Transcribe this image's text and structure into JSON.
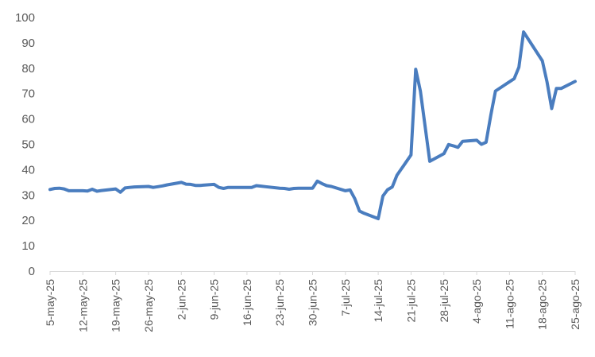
{
  "chart_data": {
    "type": "line",
    "title": "",
    "xlabel": "",
    "ylabel": "",
    "ylim": [
      0,
      100
    ],
    "yticks": [
      0,
      10,
      20,
      30,
      40,
      50,
      60,
      70,
      80,
      90,
      100
    ],
    "grid": false,
    "legend": "none",
    "line_color": "#4a7dbf",
    "xlim": [
      "2025-05-05",
      "2025-08-25"
    ],
    "xtick_dates": [
      "2025-05-05",
      "2025-05-12",
      "2025-05-19",
      "2025-05-26",
      "2025-06-02",
      "2025-06-09",
      "2025-06-16",
      "2025-06-23",
      "2025-06-30",
      "2025-07-07",
      "2025-07-14",
      "2025-07-21",
      "2025-07-28",
      "2025-08-04",
      "2025-08-11",
      "2025-08-18",
      "2025-08-25"
    ],
    "xtick_labels": [
      "5-may-25",
      "12-may-25",
      "19-may-25",
      "26-may-25",
      "2-jun-25",
      "9-jun-25",
      "16-jun-25",
      "23-jun-25",
      "30-jun-25",
      "7-jul-25",
      "14-jul-25",
      "21-jul-25",
      "28-jul-25",
      "4-ago-25",
      "11-ago-25",
      "18-ago-25",
      "25-ago-25"
    ],
    "series": [
      {
        "points": [
          [
            "2025-05-05",
            32.2
          ],
          [
            "2025-05-06",
            32.6
          ],
          [
            "2025-05-07",
            32.7
          ],
          [
            "2025-05-08",
            32.4
          ],
          [
            "2025-05-09",
            31.7
          ],
          [
            "2025-05-12",
            31.7
          ],
          [
            "2025-05-13",
            31.6
          ],
          [
            "2025-05-14",
            32.3
          ],
          [
            "2025-05-15",
            31.5
          ],
          [
            "2025-05-16",
            31.8
          ],
          [
            "2025-05-19",
            32.4
          ],
          [
            "2025-05-20",
            31.1
          ],
          [
            "2025-05-21",
            32.8
          ],
          [
            "2025-05-22",
            33.0
          ],
          [
            "2025-05-23",
            33.2
          ],
          [
            "2025-05-26",
            33.4
          ],
          [
            "2025-05-27",
            33.0
          ],
          [
            "2025-05-28",
            33.3
          ],
          [
            "2025-05-29",
            33.6
          ],
          [
            "2025-05-30",
            34.0
          ],
          [
            "2025-06-02",
            35.0
          ],
          [
            "2025-06-03",
            34.3
          ],
          [
            "2025-06-04",
            34.2
          ],
          [
            "2025-06-05",
            33.8
          ],
          [
            "2025-06-06",
            33.8
          ],
          [
            "2025-06-09",
            34.2
          ],
          [
            "2025-06-10",
            33.0
          ],
          [
            "2025-06-11",
            32.6
          ],
          [
            "2025-06-12",
            33.0
          ],
          [
            "2025-06-13",
            33.0
          ],
          [
            "2025-06-16",
            33.0
          ],
          [
            "2025-06-17",
            33.0
          ],
          [
            "2025-06-18",
            33.7
          ],
          [
            "2025-06-19",
            33.5
          ],
          [
            "2025-06-20",
            33.3
          ],
          [
            "2025-06-23",
            32.7
          ],
          [
            "2025-06-24",
            32.6
          ],
          [
            "2025-06-25",
            32.3
          ],
          [
            "2025-06-26",
            32.6
          ],
          [
            "2025-06-27",
            32.7
          ],
          [
            "2025-06-30",
            32.7
          ],
          [
            "2025-07-01",
            35.5
          ],
          [
            "2025-07-02",
            34.5
          ],
          [
            "2025-07-03",
            33.7
          ],
          [
            "2025-07-04",
            33.4
          ],
          [
            "2025-07-07",
            31.7
          ],
          [
            "2025-07-08",
            32.0
          ],
          [
            "2025-07-09",
            28.6
          ],
          [
            "2025-07-10",
            23.7
          ],
          [
            "2025-07-11",
            22.8
          ],
          [
            "2025-07-14",
            20.7
          ],
          [
            "2025-07-15",
            29.6
          ],
          [
            "2025-07-16",
            32.1
          ],
          [
            "2025-07-17",
            33.2
          ],
          [
            "2025-07-18",
            37.8
          ],
          [
            "2025-07-21",
            45.8
          ],
          [
            "2025-07-22",
            79.6
          ],
          [
            "2025-07-23",
            71.0
          ],
          [
            "2025-07-25",
            43.3
          ],
          [
            "2025-07-28",
            46.3
          ],
          [
            "2025-07-29",
            49.9
          ],
          [
            "2025-07-30",
            49.4
          ],
          [
            "2025-07-31",
            48.8
          ],
          [
            "2025-08-01",
            51.2
          ],
          [
            "2025-08-04",
            51.6
          ],
          [
            "2025-08-05",
            50.0
          ],
          [
            "2025-08-06",
            50.8
          ],
          [
            "2025-08-07",
            61.4
          ],
          [
            "2025-08-08",
            71.0
          ],
          [
            "2025-08-12",
            75.9
          ],
          [
            "2025-08-13",
            80.4
          ],
          [
            "2025-08-14",
            94.3
          ],
          [
            "2025-08-18",
            82.9
          ],
          [
            "2025-08-19",
            74.6
          ],
          [
            "2025-08-20",
            64.1
          ],
          [
            "2025-08-21",
            72.0
          ],
          [
            "2025-08-22",
            72.0
          ],
          [
            "2025-08-25",
            74.8
          ]
        ]
      }
    ]
  }
}
